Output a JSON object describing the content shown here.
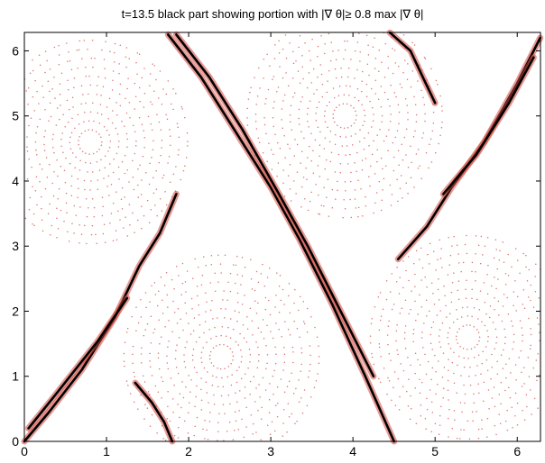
{
  "chart_data": {
    "type": "scatter",
    "title": "t=13.5 black part showing portion with |∇ θ|≥ 0.8 max |∇ θ|",
    "xlabel": "",
    "ylabel": "",
    "xlim": [
      0,
      6.283
    ],
    "ylim": [
      0,
      6.283
    ],
    "xticks": [
      0,
      1,
      2,
      3,
      4,
      5,
      6
    ],
    "yticks": [
      0,
      1,
      2,
      3,
      4,
      5,
      6
    ],
    "grid": false,
    "legend": "none",
    "colors": {
      "particles": "#d2463a",
      "high_gradient": "#000000"
    },
    "high_gradient_filaments": [
      [
        [
          0.0,
          0.0
        ],
        [
          0.3,
          0.45
        ],
        [
          0.7,
          1.1
        ],
        [
          1.1,
          1.9
        ],
        [
          1.4,
          2.7
        ],
        [
          1.65,
          3.2
        ],
        [
          1.85,
          3.8
        ]
      ],
      [
        [
          0.05,
          0.2
        ],
        [
          0.4,
          0.75
        ],
        [
          0.9,
          1.55
        ],
        [
          1.25,
          2.2
        ]
      ],
      [
        [
          1.75,
          6.25
        ],
        [
          2.15,
          5.6
        ],
        [
          2.55,
          4.8
        ],
        [
          3.0,
          3.9
        ],
        [
          3.35,
          3.1
        ],
        [
          3.75,
          2.1
        ],
        [
          4.15,
          1.0
        ],
        [
          4.5,
          0.0
        ]
      ],
      [
        [
          1.85,
          6.25
        ],
        [
          2.25,
          5.6
        ],
        [
          2.65,
          4.8
        ],
        [
          3.1,
          3.8
        ],
        [
          3.45,
          3.0
        ],
        [
          3.85,
          2.0
        ],
        [
          4.25,
          1.0
        ]
      ],
      [
        [
          4.45,
          6.28
        ],
        [
          4.7,
          6.0
        ],
        [
          4.85,
          5.6
        ],
        [
          5.0,
          5.2
        ]
      ],
      [
        [
          4.55,
          2.8
        ],
        [
          4.9,
          3.3
        ],
        [
          5.2,
          3.9
        ],
        [
          5.6,
          4.6
        ],
        [
          6.0,
          5.5
        ],
        [
          6.28,
          6.2
        ]
      ],
      [
        [
          5.1,
          3.8
        ],
        [
          5.5,
          4.4
        ],
        [
          5.9,
          5.2
        ],
        [
          6.2,
          5.9
        ]
      ],
      [
        [
          1.35,
          0.9
        ],
        [
          1.55,
          0.6
        ],
        [
          1.7,
          0.3
        ],
        [
          1.8,
          0.0
        ]
      ]
    ]
  }
}
